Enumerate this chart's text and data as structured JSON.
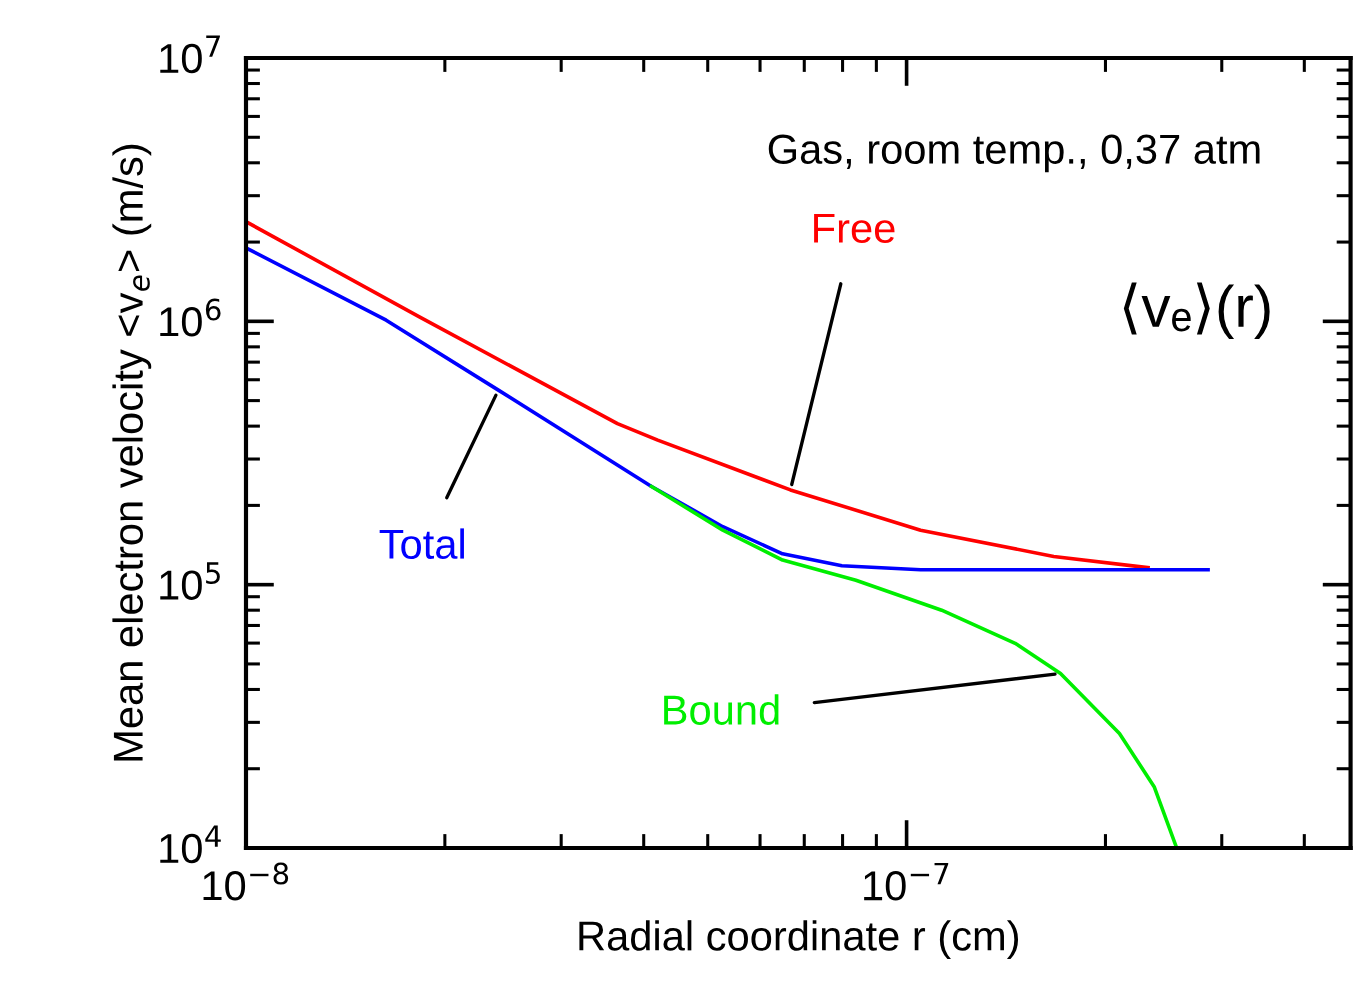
{
  "chart_data": {
    "type": "line",
    "log": "xy",
    "xlabel": "Radial coordinate r (cm)",
    "ylabel": "Mean electron velocity <v$_{e}$> (m/s)",
    "xlim": [
      1e-08,
      4.7e-07
    ],
    "ylim": [
      10000.0,
      10000000.0
    ],
    "xticks": [
      {
        "value": 1e-08,
        "label": "10$^{−8}$"
      },
      {
        "value": 1e-07,
        "label": "10$^{−7}$"
      }
    ],
    "yticks": [
      {
        "value": 10000,
        "label": "10$^{4}$"
      },
      {
        "value": 100000,
        "label": "10$^{5}$"
      },
      {
        "value": 1000000,
        "label": "10$^{6}$"
      },
      {
        "value": 10000000,
        "label": "10$^{7}$"
      }
    ],
    "grid": false,
    "legend": false,
    "marker": "none",
    "line_style": "solid",
    "annotations": [
      "Gas, room temp., 0,37 atm",
      "⟨vₑ⟩(r)"
    ],
    "series": [
      {
        "name": "Free",
        "color": "#ff0000",
        "x": [
          1e-08,
          1.83e-08,
          3.65e-08,
          4.2e-08,
          6.67e-08,
          1.05e-07,
          1.67e-07,
          2.32e-07
        ],
        "values": [
          2390000.0,
          1040000.0,
          409000.0,
          354000.0,
          229000.0,
          161000.0,
          128000.0,
          116000.0
        ]
      },
      {
        "name": "Total",
        "color": "#0000ff",
        "x": [
          1e-08,
          1.63e-08,
          2.41e-08,
          4.11e-08,
          5.27e-08,
          6.49e-08,
          7.98e-08,
          1.05e-07,
          2.86e-07
        ],
        "values": [
          1900000.0,
          1010000.0,
          548000.0,
          236000.0,
          166000.0,
          131000.0,
          118000.0,
          114000.0,
          114000.0
        ]
      },
      {
        "name": "Bound",
        "color": "#00ee00",
        "x": [
          4.11e-08,
          5.27e-08,
          6.49e-08,
          8.38e-08,
          1.13e-07,
          1.46e-07,
          1.71e-07,
          2.1e-07,
          2.37e-07,
          2.56e-07
        ],
        "values": [
          236000.0,
          161000.0,
          124000.0,
          104000.0,
          80000.0,
          59900.0,
          46000.0,
          27200.0,
          17100.0,
          10100.0
        ]
      }
    ]
  }
}
